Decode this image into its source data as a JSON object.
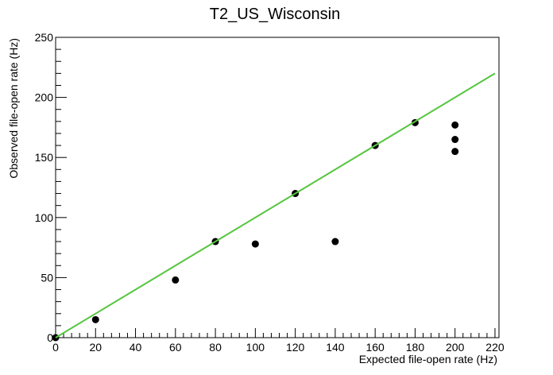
{
  "chart_data": {
    "type": "scatter",
    "title": "T2_US_Wisconsin",
    "xlabel": "Expected file-open rate (Hz)",
    "ylabel": "Observed file-open rate (Hz)",
    "xlim": [
      0,
      222
    ],
    "ylim": [
      0,
      250
    ],
    "x_ticks": [
      0,
      20,
      40,
      60,
      80,
      100,
      120,
      140,
      160,
      180,
      200,
      220
    ],
    "y_ticks": [
      0,
      50,
      100,
      150,
      200,
      250
    ],
    "grid": false,
    "legend": "none",
    "series": [
      {
        "type": "scatter",
        "color": "#000000",
        "points": [
          {
            "x": 0,
            "y": 0
          },
          {
            "x": 20,
            "y": 15
          },
          {
            "x": 60,
            "y": 48
          },
          {
            "x": 80,
            "y": 80
          },
          {
            "x": 100,
            "y": 78
          },
          {
            "x": 120,
            "y": 120
          },
          {
            "x": 140,
            "y": 80
          },
          {
            "x": 160,
            "y": 160
          },
          {
            "x": 180,
            "y": 179
          },
          {
            "x": 200,
            "y": 177
          },
          {
            "x": 200,
            "y": 165
          },
          {
            "x": 200,
            "y": 155
          }
        ]
      },
      {
        "type": "line",
        "color": "#55c63e",
        "points": [
          {
            "x": 0,
            "y": 0
          },
          {
            "x": 220,
            "y": 220
          }
        ]
      }
    ]
  }
}
